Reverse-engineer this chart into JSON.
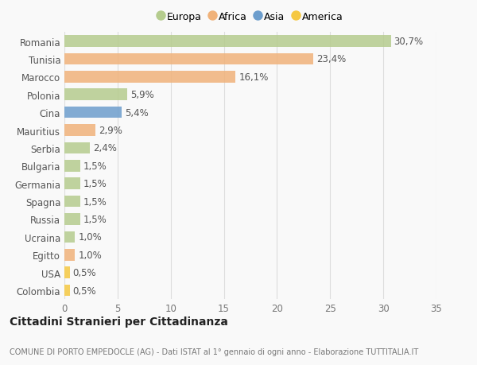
{
  "categories": [
    "Romania",
    "Tunisia",
    "Marocco",
    "Polonia",
    "Cina",
    "Mauritius",
    "Serbia",
    "Bulgaria",
    "Germania",
    "Spagna",
    "Russia",
    "Ucraina",
    "Egitto",
    "USA",
    "Colombia"
  ],
  "values": [
    30.7,
    23.4,
    16.1,
    5.9,
    5.4,
    2.9,
    2.4,
    1.5,
    1.5,
    1.5,
    1.5,
    1.0,
    1.0,
    0.5,
    0.5
  ],
  "labels": [
    "30,7%",
    "23,4%",
    "16,1%",
    "5,9%",
    "5,4%",
    "2,9%",
    "2,4%",
    "1,5%",
    "1,5%",
    "1,5%",
    "1,5%",
    "1,0%",
    "1,0%",
    "0,5%",
    "0,5%"
  ],
  "colors": [
    "#b5cc8e",
    "#f0b27a",
    "#f0b27a",
    "#b5cc8e",
    "#6d9ecd",
    "#f0b27a",
    "#b5cc8e",
    "#b5cc8e",
    "#b5cc8e",
    "#b5cc8e",
    "#b5cc8e",
    "#b5cc8e",
    "#f0b27a",
    "#f5c842",
    "#f5c842"
  ],
  "legend_labels": [
    "Europa",
    "Africa",
    "Asia",
    "America"
  ],
  "legend_colors": [
    "#b5cc8e",
    "#f0b27a",
    "#6d9ecd",
    "#f5c842"
  ],
  "title": "Cittadini Stranieri per Cittadinanza",
  "subtitle": "COMUNE DI PORTO EMPEDOCLE (AG) - Dati ISTAT al 1° gennaio di ogni anno - Elaborazione TUTTITALIA.IT",
  "xlim": [
    0,
    35
  ],
  "xticks": [
    0,
    5,
    10,
    15,
    20,
    25,
    30,
    35
  ],
  "background_color": "#f9f9f9",
  "grid_color": "#dddddd",
  "bar_height": 0.65,
  "label_fontsize": 8.5,
  "tick_fontsize": 8.5,
  "title_fontsize": 10,
  "subtitle_fontsize": 7
}
